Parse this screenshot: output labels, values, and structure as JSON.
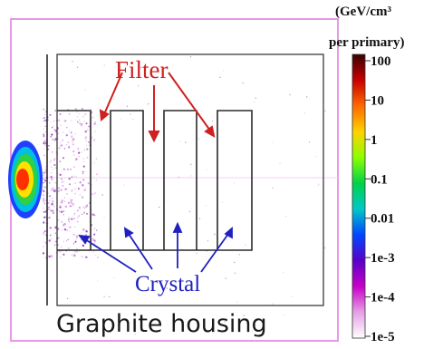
{
  "colorbar": {
    "unit_line1": "(GeV/cm³",
    "unit_line2": "per primary)",
    "ticks": [
      "100",
      "10",
      "1",
      "0.1",
      "0.01",
      "1e-3",
      "1e-4",
      "1e-5"
    ],
    "stops": [
      "#3a0000",
      "#c80000",
      "#ff6a00",
      "#ffd200",
      "#8cff00",
      "#00d24a",
      "#00c8c8",
      "#0046ff",
      "#5a00c8",
      "#c800c8",
      "#e6a0e6",
      "#ffffff"
    ]
  },
  "labels": {
    "filter": "Filter",
    "crystal": "Crystal",
    "housing": "Graphite housing"
  },
  "colors": {
    "frame": "#e69ae6",
    "outline": "#2a2a2a",
    "filter_arrows": "#d02020",
    "crystal_arrows": "#2020c0",
    "beam_hot": "#ff3000",
    "beam_warm": "#ffe000",
    "beam_green": "#30d040",
    "beam_cyan": "#00c0e0",
    "beam_blue": "#2040ff"
  }
}
